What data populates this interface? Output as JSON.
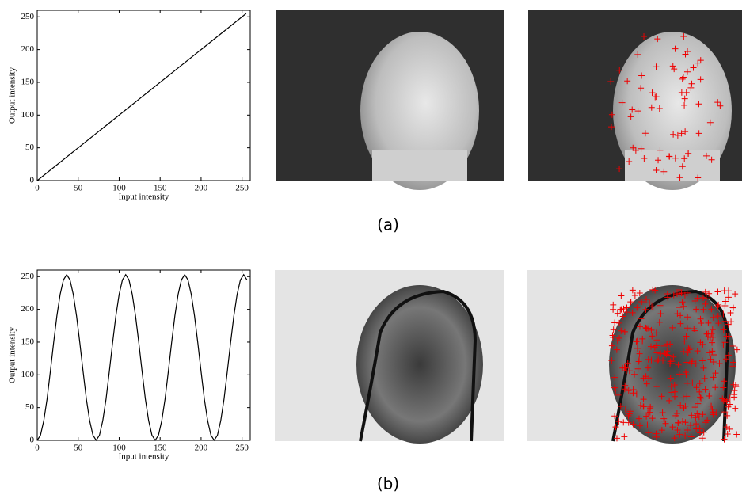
{
  "chart_data": [
    {
      "type": "line",
      "xlabel": "Input intensity",
      "ylabel": "Output intensity",
      "x": [
        0,
        255
      ],
      "values": [
        0,
        255
      ],
      "color": "#000000",
      "xlim": [
        0,
        260
      ],
      "ylim": [
        0,
        260
      ],
      "xticks": [
        0,
        50,
        100,
        150,
        200,
        250
      ],
      "yticks": [
        0,
        50,
        100,
        150,
        200,
        250
      ]
    },
    {
      "type": "line",
      "xlabel": "Input intensity",
      "ylabel": "Output intensity",
      "x": [
        0,
        4,
        8,
        12,
        16,
        20,
        24,
        28,
        32,
        36,
        40,
        44,
        48,
        52,
        56,
        60,
        64,
        68,
        72,
        76,
        80,
        84,
        88,
        92,
        96,
        100,
        104,
        108,
        112,
        116,
        120,
        124,
        128,
        132,
        136,
        140,
        144,
        148,
        152,
        156,
        160,
        164,
        168,
        172,
        176,
        180,
        184,
        188,
        192,
        196,
        200,
        204,
        208,
        212,
        216,
        220,
        224,
        228,
        232,
        236,
        240,
        244,
        248,
        252,
        256
      ],
      "values": [
        0,
        8,
        30,
        63,
        105,
        149,
        190,
        223,
        245,
        253,
        245,
        223,
        190,
        149,
        105,
        63,
        30,
        8,
        0,
        8,
        30,
        63,
        105,
        149,
        190,
        223,
        245,
        253,
        245,
        223,
        190,
        149,
        105,
        63,
        30,
        8,
        0,
        8,
        30,
        63,
        105,
        149,
        190,
        223,
        245,
        253,
        245,
        223,
        190,
        149,
        105,
        63,
        30,
        8,
        0,
        8,
        30,
        63,
        105,
        149,
        190,
        223,
        245,
        253,
        245
      ],
      "color": "#000000",
      "xlim": [
        0,
        260
      ],
      "ylim": [
        0,
        260
      ],
      "xticks": [
        0,
        50,
        100,
        150,
        200,
        250
      ],
      "yticks": [
        0,
        50,
        100,
        150,
        200,
        250
      ]
    }
  ],
  "captions": [
    "(a)",
    "(b)"
  ]
}
